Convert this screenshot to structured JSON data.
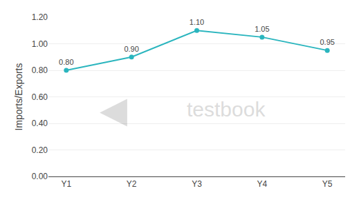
{
  "chart_data": {
    "type": "line",
    "ylabel": "Imports/Exports",
    "categories": [
      "Y1",
      "Y2",
      "Y3",
      "Y4",
      "Y5"
    ],
    "values": [
      0.8,
      0.9,
      1.1,
      1.05,
      0.95
    ],
    "value_labels": [
      "0.80",
      "0.90",
      "1.10",
      "1.05",
      "0.95"
    ],
    "data_labels": true,
    "color": "#2ab5be",
    "marker": "circle",
    "ylim": [
      0.0,
      1.2
    ],
    "yticks": [
      {
        "value": 0.0,
        "label": "0.00"
      },
      {
        "value": 0.2,
        "label": "0.20"
      },
      {
        "value": 0.4,
        "label": "0.40"
      },
      {
        "value": 0.6,
        "label": "0.60"
      },
      {
        "value": 0.8,
        "label": "0.80"
      },
      {
        "value": 1.0,
        "label": "1.00"
      },
      {
        "value": 1.2,
        "label": "1.20"
      }
    ],
    "grid": true,
    "annotations": [
      "◀",
      "testbook"
    ]
  }
}
